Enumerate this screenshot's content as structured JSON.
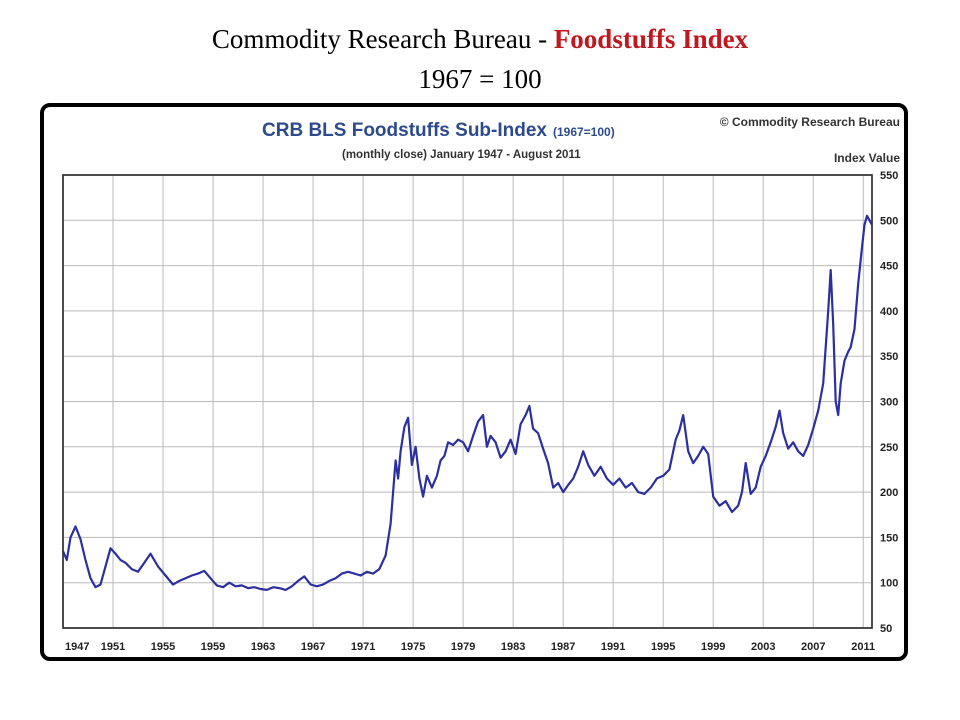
{
  "slide": {
    "title_prefix": "Commodity Research Bureau - ",
    "title_accent": "Foodstuffs Index",
    "subtitle": "1967 = 100"
  },
  "colors": {
    "accent": "#c0181f",
    "series": "#2b2fa0",
    "chart_title": "#2c4a8c",
    "grid": "#b9b9b9"
  },
  "chart_data": {
    "type": "line",
    "title": "CRB BLS Foodstuffs Sub-Index",
    "title_suffix": "(1967=100)",
    "subtitle": "(monthly close) January 1947 - August 2011",
    "copyright": "© Commodity Research Bureau",
    "ylabel": "Index Value",
    "ylim": [
      50,
      550
    ],
    "y_ticks": [
      50,
      100,
      150,
      200,
      250,
      300,
      350,
      400,
      450,
      500,
      550
    ],
    "xlim": [
      1947,
      2011.7
    ],
    "x_ticks": [
      "1947",
      "1951",
      "1955",
      "1959",
      "1963",
      "1967",
      "1971",
      "1975",
      "1979",
      "1983",
      "1987",
      "1991",
      "1995",
      "1999",
      "2003",
      "2007",
      "2011"
    ],
    "grid": true,
    "series": [
      {
        "name": "",
        "x": [
          1947.0,
          1947.3,
          1947.6,
          1948.0,
          1948.4,
          1948.8,
          1949.2,
          1949.6,
          1950.0,
          1950.4,
          1950.8,
          1951.2,
          1951.6,
          1952.0,
          1952.5,
          1953.0,
          1953.5,
          1954.0,
          1954.6,
          1955.2,
          1955.8,
          1956.3,
          1956.8,
          1957.3,
          1957.8,
          1958.3,
          1958.8,
          1959.3,
          1959.8,
          1960.3,
          1960.8,
          1961.3,
          1961.8,
          1962.3,
          1962.8,
          1963.3,
          1963.8,
          1964.3,
          1964.8,
          1965.3,
          1965.8,
          1966.3,
          1966.8,
          1967.3,
          1967.8,
          1968.3,
          1968.8,
          1969.3,
          1969.8,
          1970.3,
          1970.8,
          1971.3,
          1971.8,
          1972.3,
          1972.8,
          1973.2,
          1973.4,
          1973.6,
          1973.8,
          1974.0,
          1974.3,
          1974.6,
          1974.9,
          1975.2,
          1975.5,
          1975.8,
          1976.1,
          1976.5,
          1976.9,
          1977.2,
          1977.5,
          1977.8,
          1978.2,
          1978.6,
          1979.0,
          1979.4,
          1979.8,
          1980.2,
          1980.6,
          1980.9,
          1981.2,
          1981.6,
          1982.0,
          1982.4,
          1982.8,
          1983.2,
          1983.6,
          1984.0,
          1984.3,
          1984.6,
          1985.0,
          1985.4,
          1985.8,
          1986.2,
          1986.6,
          1987.0,
          1987.4,
          1987.8,
          1988.2,
          1988.6,
          1989.0,
          1989.5,
          1990.0,
          1990.5,
          1991.0,
          1991.5,
          1992.0,
          1992.5,
          1993.0,
          1993.5,
          1994.0,
          1994.5,
          1995.0,
          1995.5,
          1996.0,
          1996.3,
          1996.6,
          1997.0,
          1997.4,
          1997.8,
          1998.2,
          1998.6,
          1999.0,
          1999.5,
          2000.0,
          2000.5,
          2001.0,
          2001.3,
          2001.6,
          2002.0,
          2002.4,
          2002.8,
          2003.2,
          2003.6,
          2004.0,
          2004.3,
          2004.6,
          2005.0,
          2005.4,
          2005.8,
          2006.2,
          2006.6,
          2007.0,
          2007.4,
          2007.8,
          2008.0,
          2008.2,
          2008.4,
          2008.6,
          2008.8,
          2009.0,
          2009.2,
          2009.5,
          2009.8,
          2010.0,
          2010.3,
          2010.6,
          2010.9,
          2011.1,
          2011.3,
          2011.5,
          2011.7
        ],
        "values": [
          135,
          125,
          150,
          162,
          148,
          125,
          105,
          95,
          98,
          118,
          138,
          132,
          125,
          122,
          115,
          112,
          122,
          132,
          118,
          108,
          98,
          102,
          105,
          108,
          110,
          113,
          105,
          97,
          95,
          100,
          96,
          97,
          94,
          95,
          93,
          92,
          95,
          94,
          92,
          96,
          102,
          107,
          98,
          96,
          98,
          102,
          105,
          110,
          112,
          110,
          108,
          112,
          110,
          115,
          130,
          165,
          200,
          235,
          215,
          245,
          272,
          282,
          230,
          250,
          215,
          195,
          218,
          205,
          218,
          235,
          240,
          255,
          252,
          258,
          255,
          245,
          262,
          278,
          285,
          250,
          262,
          255,
          238,
          245,
          258,
          242,
          275,
          285,
          295,
          270,
          265,
          248,
          232,
          205,
          210,
          200,
          208,
          215,
          228,
          245,
          230,
          218,
          228,
          215,
          208,
          215,
          205,
          210,
          200,
          198,
          205,
          215,
          218,
          225,
          258,
          268,
          285,
          245,
          232,
          240,
          250,
          242,
          195,
          185,
          190,
          178,
          185,
          200,
          232,
          198,
          205,
          228,
          240,
          255,
          272,
          290,
          265,
          248,
          255,
          245,
          240,
          252,
          270,
          290,
          320,
          360,
          400,
          445,
          385,
          300,
          285,
          320,
          345,
          355,
          360,
          380,
          430,
          470,
          495,
          505,
          500,
          495
        ]
      }
    ]
  }
}
